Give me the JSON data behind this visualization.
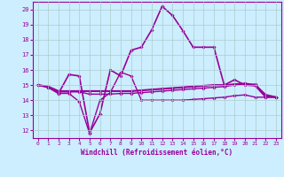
{
  "xlabel": "Windchill (Refroidissement éolien,°C)",
  "background_color": "#cceeff",
  "grid_color": "#aacccc",
  "line_color": "#990099",
  "xlim": [
    -0.5,
    23.5
  ],
  "ylim": [
    11.5,
    20.5
  ],
  "xticks": [
    0,
    1,
    2,
    3,
    4,
    5,
    6,
    7,
    8,
    9,
    10,
    11,
    12,
    13,
    14,
    15,
    16,
    17,
    18,
    19,
    20,
    21,
    22,
    23
  ],
  "yticks": [
    12,
    13,
    14,
    15,
    16,
    17,
    18,
    19,
    20
  ],
  "series": [
    {
      "x": [
        0,
        1,
        2,
        3,
        4,
        5,
        6,
        7,
        8,
        9,
        10,
        11,
        12,
        13,
        14,
        15,
        16,
        17,
        18,
        19,
        20,
        21,
        22,
        23
      ],
      "y": [
        15.0,
        14.85,
        14.45,
        14.45,
        13.9,
        11.8,
        14.0,
        14.5,
        15.85,
        15.6,
        14.0,
        14.0,
        14.0,
        14.0,
        14.0,
        14.05,
        14.1,
        14.15,
        14.2,
        14.3,
        14.35,
        14.2,
        14.2,
        14.2
      ],
      "lw": 1.0,
      "marker": "D",
      "ms": 1.8
    },
    {
      "x": [
        0,
        1,
        2,
        3,
        4,
        5,
        6,
        7,
        8,
        9,
        10,
        11,
        12,
        13,
        14,
        15,
        16,
        17,
        18,
        19,
        20,
        21,
        22,
        23
      ],
      "y": [
        15.0,
        14.9,
        14.6,
        14.6,
        14.6,
        14.6,
        14.6,
        14.6,
        14.6,
        14.6,
        14.65,
        14.7,
        14.75,
        14.8,
        14.85,
        14.9,
        14.95,
        15.0,
        15.0,
        15.05,
        15.1,
        15.0,
        14.35,
        14.2
      ],
      "lw": 1.5,
      "marker": "D",
      "ms": 1.8
    },
    {
      "x": [
        0,
        1,
        2,
        3,
        4,
        5,
        6,
        7,
        8,
        9,
        10,
        11,
        12,
        13,
        14,
        15,
        16,
        17,
        18,
        19,
        20,
        21,
        22,
        23
      ],
      "y": [
        15.0,
        14.9,
        14.55,
        14.55,
        14.55,
        14.4,
        14.4,
        14.4,
        14.45,
        14.45,
        14.5,
        14.55,
        14.6,
        14.65,
        14.7,
        14.75,
        14.8,
        14.85,
        14.9,
        15.0,
        15.05,
        15.05,
        14.3,
        14.2
      ],
      "lw": 1.0,
      "marker": "D",
      "ms": 1.8
    },
    {
      "x": [
        0,
        1,
        2,
        3,
        4,
        5,
        6,
        7,
        8,
        9,
        10,
        11,
        12,
        13,
        14,
        15,
        16,
        17,
        18,
        19,
        20,
        21,
        22,
        23
      ],
      "y": [
        15.0,
        14.85,
        14.45,
        15.7,
        15.6,
        11.85,
        13.1,
        16.0,
        15.6,
        17.3,
        17.5,
        18.65,
        20.2,
        19.6,
        18.6,
        17.5,
        17.5,
        17.5,
        15.0,
        15.35,
        15.0,
        14.95,
        14.2,
        14.2
      ],
      "lw": 1.2,
      "marker": "D",
      "ms": 1.8
    }
  ]
}
